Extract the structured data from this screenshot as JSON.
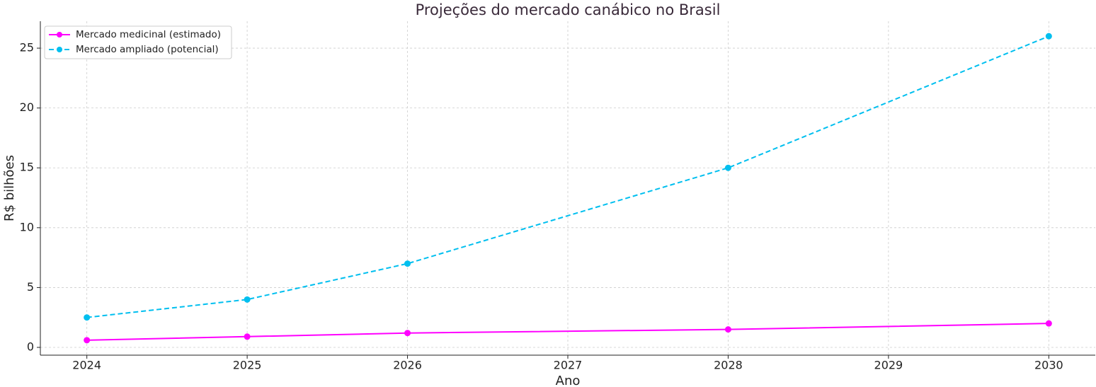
{
  "chart_data": {
    "type": "line",
    "title": "Projeções do mercado canábico no Brasil",
    "x_label": "Ano",
    "y_label": "R$ bilhões",
    "x": [
      2024,
      2025,
      2026,
      2028,
      2030
    ],
    "series": [
      {
        "name": "Mercado medicinal (estimado)",
        "color": "#ff00ff",
        "linestyle": "solid",
        "values": [
          0.6,
          0.9,
          1.2,
          1.5,
          2.0
        ]
      },
      {
        "name": "Mercado ampliado (potencial)",
        "color": "#00bfef",
        "linestyle": "dashed",
        "values": [
          2.5,
          4,
          7,
          15,
          26
        ]
      }
    ],
    "xlim": [
      2023.71,
      2030.29
    ],
    "ylim": [
      -0.65,
      27.25
    ],
    "xticks": [
      2024,
      2025,
      2026,
      2027,
      2028,
      2029,
      2030
    ],
    "yticks": [
      0,
      5,
      10,
      15,
      20,
      25
    ],
    "grid": true,
    "legend": "upper left"
  }
}
